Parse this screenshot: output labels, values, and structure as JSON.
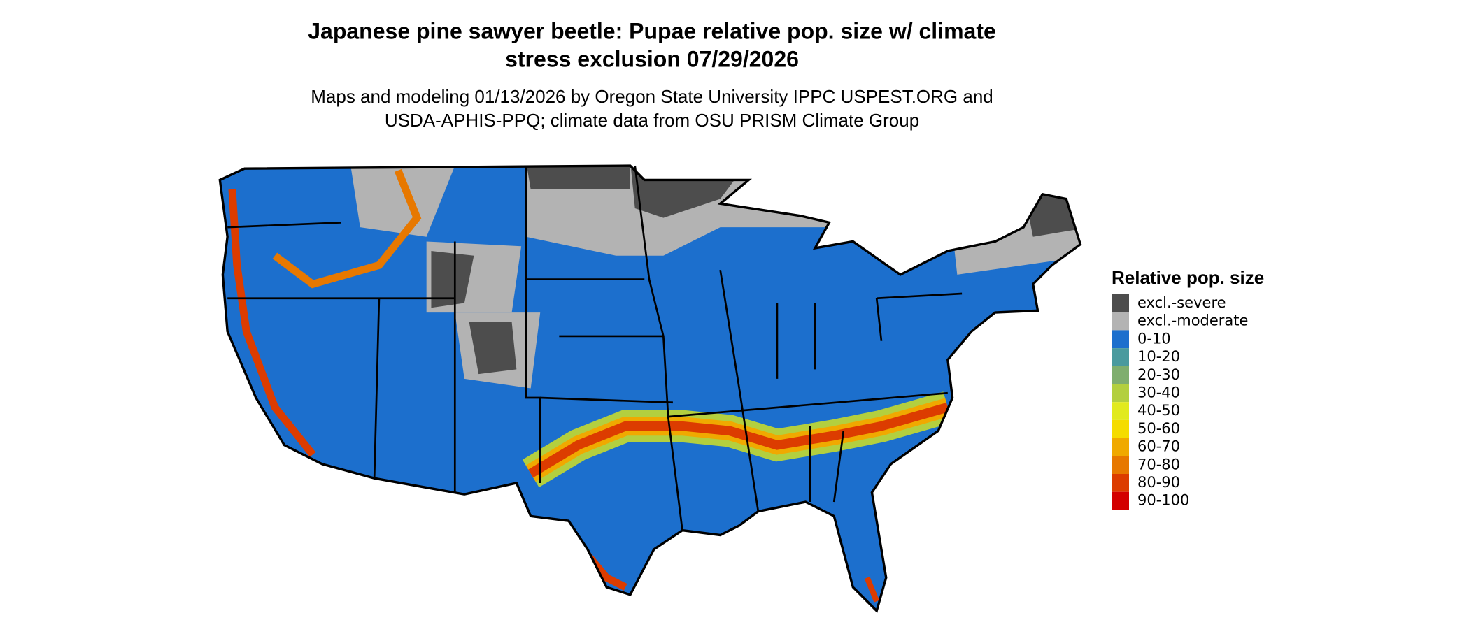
{
  "title_lines": [
    "Japanese pine sawyer beetle: Pupae relative pop. size w/ climate",
    "stress exclusion 07/29/2026"
  ],
  "subtitle_lines": [
    "Maps and modeling 01/13/2026 by Oregon State University IPPC USPEST.ORG and",
    "USDA-APHIS-PPQ; climate data from OSU PRISM Climate Group"
  ],
  "legend": {
    "title": "Relative pop. size",
    "items": [
      {
        "label": "excl.-severe",
        "color": "#4d4d4d"
      },
      {
        "label": "excl.-moderate",
        "color": "#b3b3b3"
      },
      {
        "label": "0-10",
        "color": "#1c6fcd"
      },
      {
        "label": "10-20",
        "color": "#4a9a9e"
      },
      {
        "label": "20-30",
        "color": "#7fae6e"
      },
      {
        "label": "30-40",
        "color": "#b3cf3f"
      },
      {
        "label": "40-50",
        "color": "#e1ea1e"
      },
      {
        "label": "50-60",
        "color": "#f5dc00"
      },
      {
        "label": "60-70",
        "color": "#f0a900"
      },
      {
        "label": "70-80",
        "color": "#e77800"
      },
      {
        "label": "80-90",
        "color": "#dc3c00"
      },
      {
        "label": "90-100",
        "color": "#d30000"
      }
    ]
  }
}
